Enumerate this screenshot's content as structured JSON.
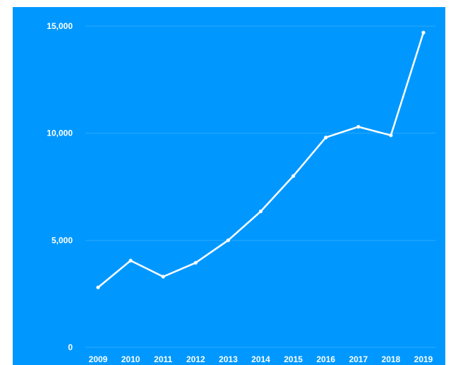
{
  "colors": {
    "background": "#0098ff",
    "line": "#ffffff",
    "grid": "#2aa8ff"
  },
  "chart_data": {
    "type": "line",
    "title": "",
    "xlabel": "",
    "ylabel": "",
    "categories": [
      "2009",
      "2010",
      "2011",
      "2012",
      "2013",
      "2014",
      "2015",
      "2016",
      "2017",
      "2018",
      "2019"
    ],
    "series": [
      {
        "values": [
          2800,
          4050,
          3300,
          3950,
          5000,
          6350,
          8000,
          9800,
          10300,
          9900,
          14700
        ]
      }
    ],
    "ylim": [
      0,
      15000
    ],
    "yticks": [
      0,
      5000,
      10000,
      15000
    ],
    "ytick_labels": [
      "0",
      "5,000",
      "10,000",
      "15,000"
    ],
    "grid": true,
    "legend": "none",
    "markers": true
  }
}
